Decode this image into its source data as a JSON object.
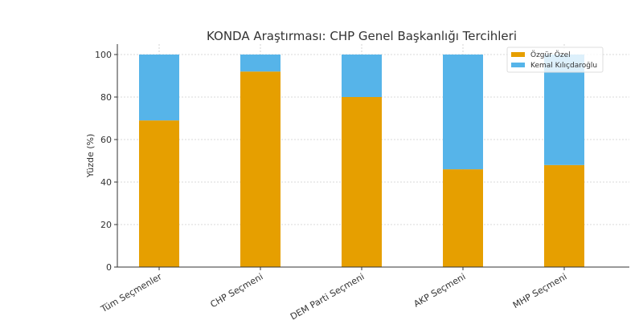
{
  "chart_data": {
    "type": "bar",
    "stacked": true,
    "title": "KONDA Araştırması: CHP Genel Başkanlığı Tercihleri",
    "xlabel": "",
    "ylabel": "Yüzde (%)",
    "ylim": [
      0,
      105
    ],
    "yticks": [
      0,
      20,
      40,
      60,
      80,
      100
    ],
    "grid": true,
    "legend_position": "top-right",
    "categories": [
      "Tüm Seçmenler",
      "CHP Seçmeni",
      "DEM Parti Seçmeni",
      "AKP Seçmeni",
      "MHP Seçmeni"
    ],
    "series": [
      {
        "name": "Özgür Özel",
        "color": "#E69F00",
        "values": [
          69,
          92,
          80,
          46,
          48
        ]
      },
      {
        "name": "Kemal Kılıçdaroğlu",
        "color": "#56B4E9",
        "values": [
          31,
          8,
          20,
          54,
          52
        ]
      }
    ]
  }
}
